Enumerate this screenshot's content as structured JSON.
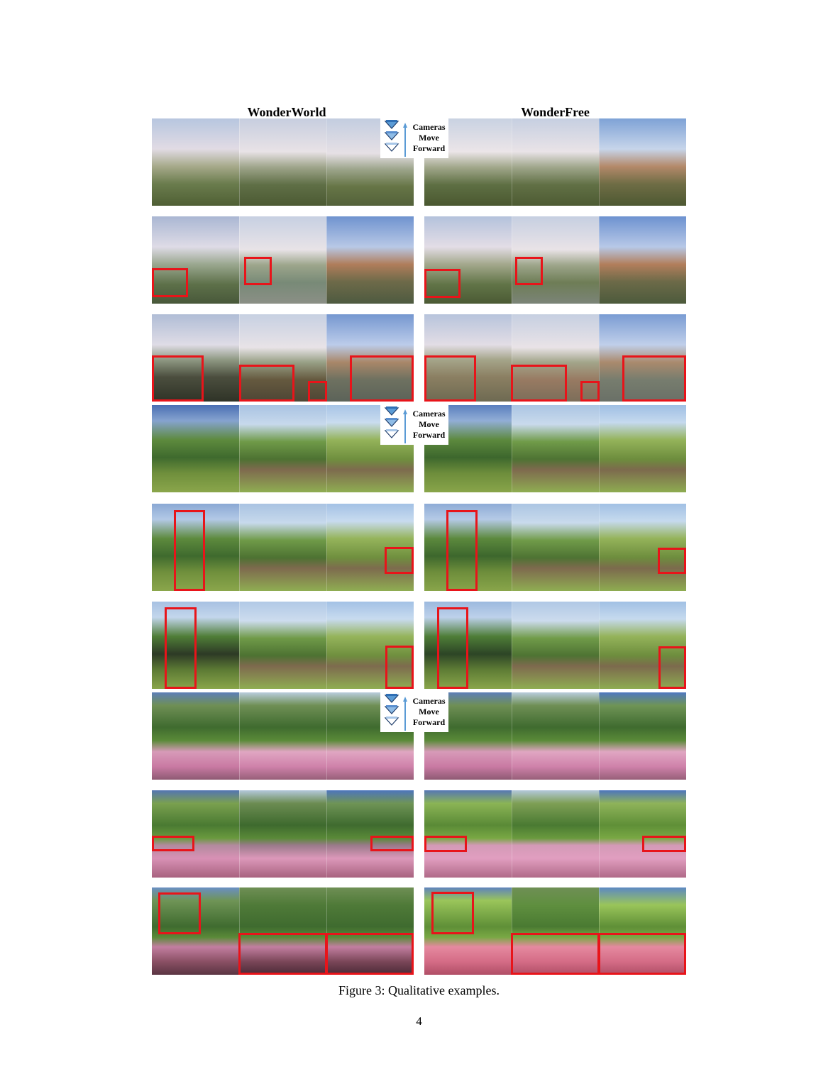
{
  "columns": {
    "left_title": "WonderWorld",
    "right_title": "WonderFree"
  },
  "legend": {
    "line1": "Cameras",
    "line2": "Move",
    "line3": "Forward"
  },
  "caption": "Figure 3: Qualitative examples.",
  "page_number": "4",
  "colors": {
    "highlight_box": "#e8141a",
    "legend_arrow": "#5b9bd5"
  }
}
